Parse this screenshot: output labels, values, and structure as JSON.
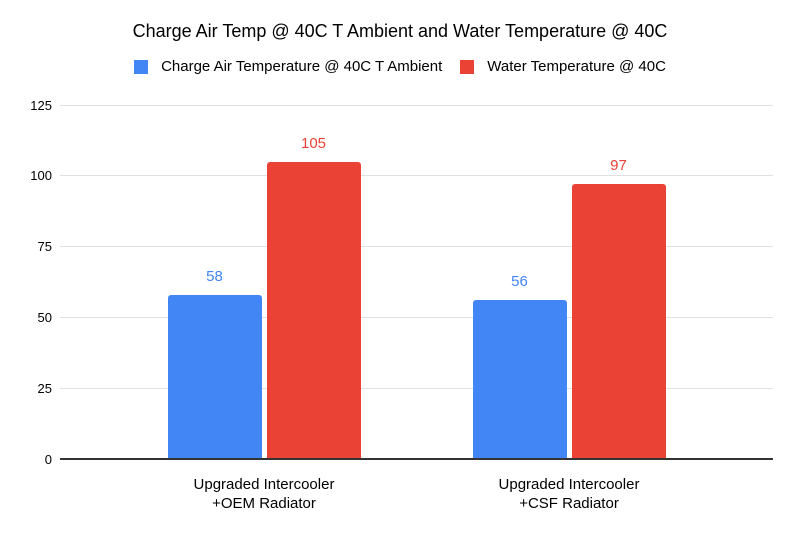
{
  "chart_data": {
    "type": "bar",
    "title": "Charge Air Temp @ 40C T Ambient and Water Temperature @ 40C",
    "categories": [
      "Upgraded Intercooler\n+OEM Radiator",
      "Upgraded Intercooler\n+CSF Radiator"
    ],
    "series": [
      {
        "name": "Charge Air Temperature @ 40C T Ambient",
        "color": "#4285F4",
        "values": [
          58,
          56
        ]
      },
      {
        "name": "Water Temperature @ 40C",
        "color": "#EA4335",
        "values": [
          105,
          97
        ]
      }
    ],
    "ylim": [
      0,
      125
    ],
    "y_ticks": [
      0,
      25,
      50,
      75,
      100,
      125
    ],
    "grid": true,
    "legend_position": "top",
    "data_labels": true,
    "colors": {
      "gridline": "#e0e0e0",
      "axis_line": "#333333",
      "text": "#000000",
      "background": "#ffffff"
    }
  }
}
